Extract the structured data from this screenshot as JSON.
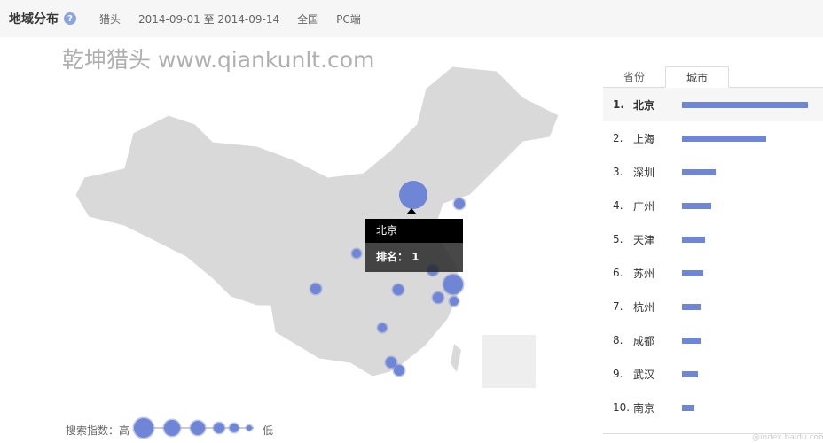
{
  "header": {
    "title": "地域分布",
    "help_icon": "question-icon",
    "keyword": "猎头",
    "date_range": "2014-09-01 至 2014-09-14",
    "region": "全国",
    "platform": "PC端"
  },
  "map": {
    "bubble_color": "#6f86d6",
    "tooltip": {
      "city": "北京",
      "rank_label": "排名：",
      "rank": "1"
    }
  },
  "watermark": "乾坤猎头 www.qiankunlt.com",
  "legend": {
    "label": "搜索指数：高",
    "low": "低"
  },
  "tabs": [
    {
      "label": "省份",
      "active": false
    },
    {
      "label": "城市",
      "active": true
    }
  ],
  "ranking": [
    {
      "rank": "1.",
      "city": "北京",
      "value": 100
    },
    {
      "rank": "2.",
      "city": "上海",
      "value": 67
    },
    {
      "rank": "3.",
      "city": "深圳",
      "value": 27
    },
    {
      "rank": "4.",
      "city": "广州",
      "value": 23
    },
    {
      "rank": "5.",
      "city": "天津",
      "value": 18
    },
    {
      "rank": "6.",
      "city": "苏州",
      "value": 17
    },
    {
      "rank": "7.",
      "city": "杭州",
      "value": 15
    },
    {
      "rank": "8.",
      "city": "成都",
      "value": 15
    },
    {
      "rank": "9.",
      "city": "武汉",
      "value": 13
    },
    {
      "rank": "10.",
      "city": "南京",
      "value": 10
    }
  ],
  "source": "@index.baidu.com"
}
